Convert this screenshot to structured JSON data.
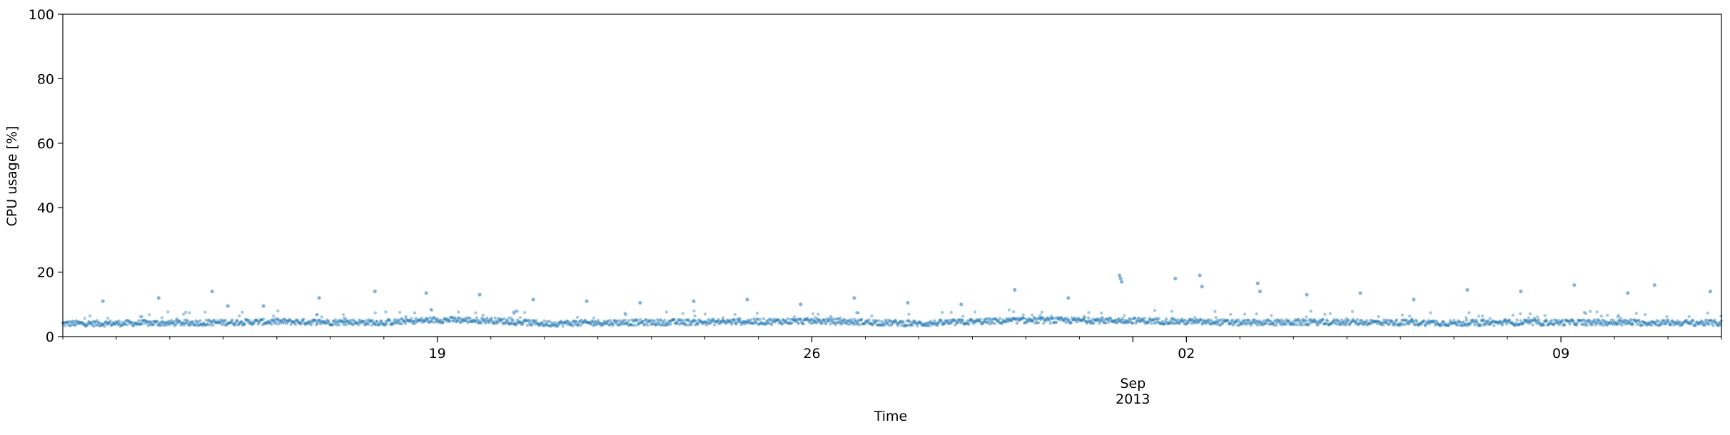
{
  "chart_data": {
    "type": "scatter",
    "title": "",
    "xlabel": "Time",
    "ylabel": "CPU usage [%]",
    "x_range": [
      "2013-08-12",
      "2013-09-12"
    ],
    "ylim": [
      0,
      100
    ],
    "y_ticks": [
      0,
      20,
      40,
      60,
      80,
      100
    ],
    "x_major_ticks": [
      {
        "date": "2013-08-19",
        "label": "19",
        "sub": ""
      },
      {
        "date": "2013-08-26",
        "label": "26",
        "sub": ""
      },
      {
        "date": "2013-09-02",
        "label": "02",
        "sub": ""
      },
      {
        "date": "2013-09-09",
        "label": "09",
        "sub": ""
      }
    ],
    "x_month_label": {
      "date": "2013-09-01",
      "month": "Sep",
      "year": "2013"
    },
    "marker_color": "#1f77b4",
    "grid": false,
    "series": [
      {
        "baseline": [
          [
            "2013-08-12",
            4.0
          ],
          [
            "2013-08-14",
            4.2
          ],
          [
            "2013-08-16",
            4.6
          ],
          [
            "2013-08-18",
            4.4
          ],
          [
            "2013-08-19",
            5.2
          ],
          [
            "2013-08-20",
            5.0
          ],
          [
            "2013-08-21",
            4.0
          ],
          [
            "2013-08-22",
            4.3
          ],
          [
            "2013-08-24",
            4.5
          ],
          [
            "2013-08-26",
            4.8
          ],
          [
            "2013-08-27",
            4.5
          ],
          [
            "2013-08-28",
            4.0
          ],
          [
            "2013-08-29",
            4.6
          ],
          [
            "2013-08-30",
            5.0
          ],
          [
            "2013-09-01",
            5.0
          ],
          [
            "2013-09-02",
            4.6
          ],
          [
            "2013-09-03",
            4.3
          ],
          [
            "2013-09-05",
            4.5
          ],
          [
            "2013-09-07",
            4.2
          ],
          [
            "2013-09-09",
            4.4
          ],
          [
            "2013-09-11",
            4.3
          ],
          [
            "2013-09-12",
            4.2
          ]
        ],
        "outliers": [
          [
            "2013-08-12 18:00",
            11.0
          ],
          [
            "2013-08-13 19:00",
            12.0
          ],
          [
            "2013-08-14 19:00",
            14.0
          ],
          [
            "2013-08-15 02:00",
            9.5
          ],
          [
            "2013-08-15 18:00",
            9.5
          ],
          [
            "2013-08-16 19:00",
            12.0
          ],
          [
            "2013-08-17 20:00",
            14.0
          ],
          [
            "2013-08-18 19:00",
            13.5
          ],
          [
            "2013-08-19 19:00",
            13.0
          ],
          [
            "2013-08-20 19:00",
            11.5
          ],
          [
            "2013-08-21 19:00",
            11.0
          ],
          [
            "2013-08-22 19:00",
            10.5
          ],
          [
            "2013-08-23 19:00",
            11.0
          ],
          [
            "2013-08-24 19:00",
            11.5
          ],
          [
            "2013-08-25 19:00",
            10.0
          ],
          [
            "2013-08-26 19:00",
            12.0
          ],
          [
            "2013-08-27 19:00",
            10.5
          ],
          [
            "2013-08-28 19:00",
            10.0
          ],
          [
            "2013-08-29 19:00",
            14.5
          ],
          [
            "2013-08-30 19:00",
            12.0
          ],
          [
            "2013-08-31 18:00",
            19.0
          ],
          [
            "2013-08-31 18:30",
            18.0
          ],
          [
            "2013-08-31 19:00",
            17.0
          ],
          [
            "2013-09-01 19:00",
            18.0
          ],
          [
            "2013-09-02 06:00",
            19.0
          ],
          [
            "2013-09-02 07:00",
            15.5
          ],
          [
            "2013-09-03 08:00",
            16.5
          ],
          [
            "2013-09-03 09:00",
            14.0
          ],
          [
            "2013-09-04 06:00",
            13.0
          ],
          [
            "2013-09-05 06:00",
            13.5
          ],
          [
            "2013-09-06 06:00",
            11.5
          ],
          [
            "2013-09-07 06:00",
            14.5
          ],
          [
            "2013-09-08 06:00",
            14.0
          ],
          [
            "2013-09-09 06:00",
            16.0
          ],
          [
            "2013-09-10 06:00",
            13.5
          ],
          [
            "2013-09-10 18:00",
            16.0
          ],
          [
            "2013-09-11 19:00",
            14.0
          ]
        ]
      }
    ]
  }
}
